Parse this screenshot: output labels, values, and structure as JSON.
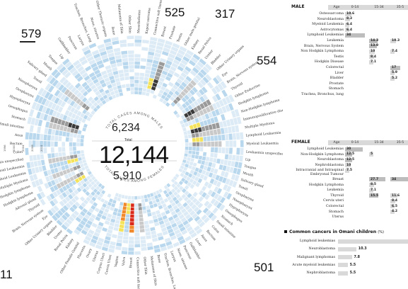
{
  "corner_numbers": {
    "top_left": "579",
    "top_mid": "525",
    "top_right_small": "317",
    "right": "554",
    "bottom_right": "501",
    "bottom_left": "11"
  },
  "center": {
    "males_label": "TOTAL CASES AMONG MALES",
    "males_value": "6,234",
    "total_label": "Total",
    "total_value": "12,144",
    "females_value": "5,910",
    "females_label": "TOTAL CASES AMONG FEMALES"
  },
  "radial_labels_top": [
    "Colon",
    "Rectum",
    "Anus",
    "Small intestine",
    "Stomach",
    "Oesophagus",
    "Hypopharynx",
    "Oropharynx",
    "Nasopharynx",
    "Tonsil",
    "Salivary gland",
    "Mouth",
    "Tongue",
    "Lip",
    "Gallbladder",
    "Pancreas",
    "Larynx",
    "Trachea, Bronchus, Lung",
    "Nose, sinuses",
    "Other Thoracic organs",
    "Bone",
    "Melanoma of Skin",
    "Other Skin",
    "Mesothelioma",
    "Kaposi sarcoma",
    "Connective soft tissue",
    "Breast",
    "Prostate",
    "Testis",
    "Other male genital",
    "Kidney",
    "Renal Pelvis",
    "Ureter",
    "Bladder",
    "Other Urinary organs",
    "Eye",
    "Brain, Nervous system",
    "Thyroid",
    "Other Endocrine",
    "Hodgkin lymphoma",
    "Non-Hodgkin lymphoma",
    "Immunoproliferative disease",
    "Multiple Myeloma",
    "Lymphoid Leukaemia",
    "Myeloid Leukaemia",
    "Leukaemia unspecified"
  ],
  "radial_labels_bottom": [
    "Lip",
    "Tongue",
    "Mouth",
    "Salivary gland",
    "Tonsil",
    "Oropharynx",
    "Nasopharynx",
    "Hypopharynx",
    "Oesophagus",
    "Stomach",
    "Small intestine",
    "Colon",
    "Rectum",
    "Anus",
    "Liver",
    "Gallbladder",
    "Pancreas",
    "Nose, sinuses",
    "Larynx",
    "Trachea, Bronchus, Lung",
    "Bone",
    "Melanoma of Skin",
    "Other Skin",
    "Connective soft tissue",
    "Breast",
    "Vulva",
    "Vagina",
    "Cervix Uteri",
    "Corpus Uteri",
    "Uterus",
    "Ovary",
    "Placenta",
    "Other Female Genital",
    "Kidney",
    "Renal Pelvis",
    "Ureter",
    "Bladder",
    "Other Urinary organs",
    "Eye",
    "Brain, Nervous system",
    "Thyroid",
    "Adrenal gland",
    "Hodgkin lymphoma",
    "Non-Hodgkin lymphoma",
    "Multiple Myeloma",
    "Lymphoid Leukaemia",
    "Myeloid Leukaemia",
    "Leukaemia unspecified"
  ],
  "radial_years": [
    "1996",
    "2000",
    "2004",
    "2008",
    "2011"
  ],
  "chart_data": {
    "type": "table",
    "male": {
      "title": "MALE",
      "columns": [
        "Age",
        "0-14",
        "15-34",
        "35-5"
      ],
      "rows": [
        {
          "label": "Osteosarcoma",
          "values": [
            10.6,
            null,
            null
          ]
        },
        {
          "label": "Neuroblastoma",
          "values": [
            8.3,
            null,
            null
          ]
        },
        {
          "label": "Myeloid Leukemia",
          "values": [
            6.4,
            null,
            null
          ]
        },
        {
          "label": "Astrocytomas",
          "values": [
            6.4,
            null,
            null
          ]
        },
        {
          "label": "Lymphoid Leukemias",
          "values": [
            34,
            null,
            null
          ]
        },
        {
          "label": "Leukemia",
          "values": [
            null,
            14.3,
            10.3
          ]
        },
        {
          "label": "Brain, Nervous System",
          "values": [
            null,
            13.9,
            null
          ]
        },
        {
          "label": "Non Hodgkin Lymphoma",
          "values": [
            null,
            10,
            7.4
          ]
        },
        {
          "label": "Testis",
          "values": [
            null,
            8.4,
            null
          ]
        },
        {
          "label": "Hodgkin Disease",
          "values": [
            null,
            7.1,
            null
          ]
        },
        {
          "label": "Colorectal",
          "values": [
            null,
            null,
            17
          ]
        },
        {
          "label": "Liver",
          "values": [
            null,
            null,
            5.9
          ]
        },
        {
          "label": "Bladder",
          "values": [
            null,
            null,
            5.2
          ]
        },
        {
          "label": "Prostate",
          "values": [
            null,
            null,
            null
          ]
        },
        {
          "label": "Stomach",
          "values": [
            null,
            null,
            null
          ]
        },
        {
          "label": "Trachea, Bronchus, lung",
          "values": [
            null,
            null,
            null
          ]
        }
      ]
    },
    "female": {
      "title": "FEMALE",
      "columns": [
        "Age",
        "0-14",
        "15-34",
        "35-5"
      ],
      "rows": [
        {
          "label": "Lymphoid Leukemias",
          "values": [
            30,
            null,
            null
          ]
        },
        {
          "label": "Non-Hodgkin Lymphoma",
          "values": [
            12.5,
            5,
            null
          ]
        },
        {
          "label": "Neuroblastoma",
          "values": [
            12.5,
            null,
            null
          ]
        },
        {
          "label": "Nephroblastoma",
          "values": [
            10,
            null,
            null
          ]
        },
        {
          "label": "Intracranial and Intraspinal Embryonal Tumour",
          "values": [
            7.5,
            null,
            null
          ]
        },
        {
          "label": "Breast",
          "values": [
            null,
            27.7,
            34.0
          ]
        },
        {
          "label": "Hodgkin Lymphoma",
          "values": [
            null,
            8.5,
            null
          ]
        },
        {
          "label": "Leukemia",
          "values": [
            null,
            7.1,
            null
          ]
        },
        {
          "label": "Thyroid",
          "values": [
            null,
            15.5,
            11.6
          ]
        },
        {
          "label": "Cervix uteri",
          "values": [
            null,
            null,
            8.4
          ]
        },
        {
          "label": "Colorectal",
          "values": [
            null,
            null,
            6.5
          ]
        },
        {
          "label": "Stomach",
          "values": [
            null,
            null,
            4.2
          ]
        },
        {
          "label": "Uterus",
          "values": [
            null,
            null,
            null
          ]
        }
      ]
    },
    "common": {
      "title": "Common cancers in Omani children",
      "unit": "(%)",
      "rows": [
        {
          "label": "Lymphoid leukemias",
          "value": null
        },
        {
          "label": "Neuroblastoma",
          "value": 10.3
        },
        {
          "label": "Malignant lymphomas",
          "value": 7.8
        },
        {
          "label": "Acute myeloid leukemias",
          "value": 5.5
        },
        {
          "label": "Nephroblastoma",
          "value": 5.5
        }
      ]
    }
  },
  "colors": {
    "cell_light": "#dcebf6",
    "cell_mid": "#b9d8ee",
    "cell_grey": "#9a9a9a",
    "cell_dark": "#3a3a3a",
    "cell_yellow": "#f4e35a",
    "cell_orange": "#f08a2c",
    "cell_red": "#d92a1c",
    "table_bar": "#d9d9d9",
    "table_bar_dark": "#bdbdbd"
  }
}
